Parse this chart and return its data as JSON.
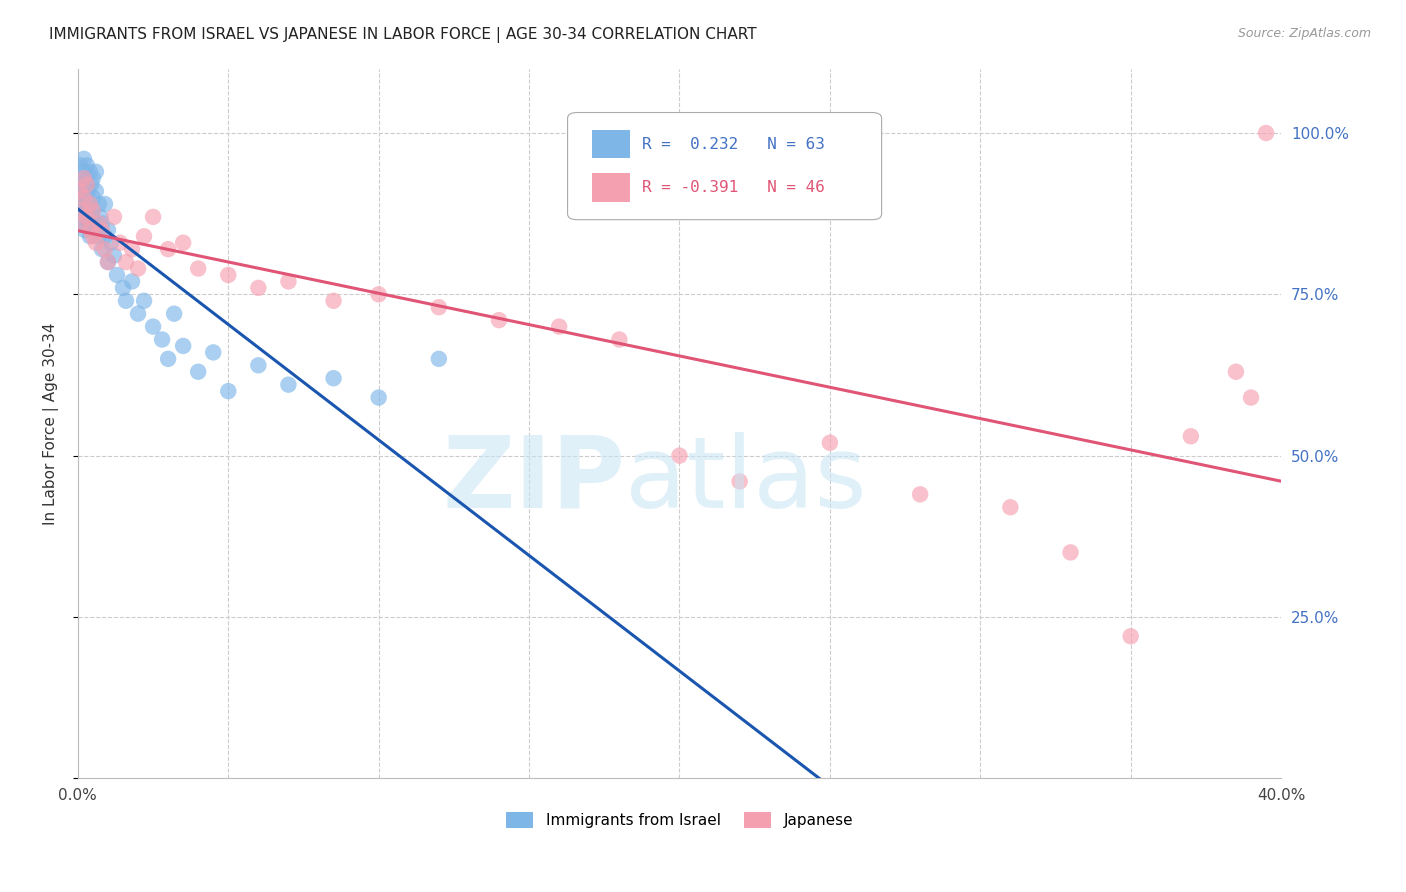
{
  "title": "IMMIGRANTS FROM ISRAEL VS JAPANESE IN LABOR FORCE | AGE 30-34 CORRELATION CHART",
  "source": "Source: ZipAtlas.com",
  "ylabel": "In Labor Force | Age 30-34",
  "xmin": 0.0,
  "xmax": 0.4,
  "ymin": 0.0,
  "ymax": 1.1,
  "yticks": [
    0.0,
    0.25,
    0.5,
    0.75,
    1.0
  ],
  "ytick_labels": [
    "",
    "25.0%",
    "50.0%",
    "75.0%",
    "100.0%"
  ],
  "xticks": [
    0.0,
    0.05,
    0.1,
    0.15,
    0.2,
    0.25,
    0.3,
    0.35,
    0.4
  ],
  "xtick_labels": [
    "0.0%",
    "",
    "",
    "",
    "",
    "",
    "",
    "",
    "40.0%"
  ],
  "israel_R": 0.232,
  "israel_N": 63,
  "japanese_R": -0.391,
  "japanese_N": 46,
  "israel_color": "#7EB6E8",
  "japanese_color": "#F5A0B0",
  "trendline_israel_color": "#1A56B0",
  "trendline_japanese_color": "#E05575",
  "israel_x": [
    0.0005,
    0.0008,
    0.001,
    0.001,
    0.0012,
    0.0013,
    0.0015,
    0.0015,
    0.0018,
    0.002,
    0.002,
    0.002,
    0.0022,
    0.0025,
    0.0025,
    0.003,
    0.003,
    0.003,
    0.003,
    0.0035,
    0.0035,
    0.004,
    0.004,
    0.004,
    0.0045,
    0.0045,
    0.005,
    0.005,
    0.005,
    0.005,
    0.006,
    0.006,
    0.006,
    0.007,
    0.007,
    0.0075,
    0.008,
    0.008,
    0.009,
    0.009,
    0.01,
    0.01,
    0.011,
    0.012,
    0.013,
    0.015,
    0.016,
    0.018,
    0.02,
    0.022,
    0.025,
    0.028,
    0.03,
    0.032,
    0.035,
    0.04,
    0.045,
    0.05,
    0.06,
    0.07,
    0.085,
    0.1,
    0.12
  ],
  "israel_y": [
    0.9,
    0.95,
    0.88,
    0.93,
    0.87,
    0.92,
    0.86,
    0.91,
    0.89,
    0.94,
    0.88,
    0.96,
    0.85,
    0.9,
    0.93,
    0.87,
    0.92,
    0.88,
    0.95,
    0.86,
    0.91,
    0.84,
    0.89,
    0.94,
    0.87,
    0.92,
    0.85,
    0.9,
    0.88,
    0.93,
    0.86,
    0.91,
    0.94,
    0.84,
    0.89,
    0.87,
    0.82,
    0.86,
    0.84,
    0.89,
    0.8,
    0.85,
    0.83,
    0.81,
    0.78,
    0.76,
    0.74,
    0.77,
    0.72,
    0.74,
    0.7,
    0.68,
    0.65,
    0.72,
    0.67,
    0.63,
    0.66,
    0.6,
    0.64,
    0.61,
    0.62,
    0.59,
    0.65
  ],
  "japanese_x": [
    0.0005,
    0.001,
    0.0015,
    0.002,
    0.002,
    0.003,
    0.003,
    0.004,
    0.004,
    0.005,
    0.005,
    0.006,
    0.007,
    0.008,
    0.009,
    0.01,
    0.012,
    0.014,
    0.016,
    0.018,
    0.02,
    0.022,
    0.025,
    0.03,
    0.035,
    0.04,
    0.05,
    0.06,
    0.07,
    0.085,
    0.1,
    0.12,
    0.14,
    0.16,
    0.18,
    0.2,
    0.22,
    0.25,
    0.28,
    0.31,
    0.33,
    0.35,
    0.37,
    0.385,
    0.39,
    0.395
  ],
  "japanese_y": [
    0.91,
    0.88,
    0.86,
    0.9,
    0.93,
    0.87,
    0.92,
    0.85,
    0.89,
    0.84,
    0.88,
    0.83,
    0.86,
    0.85,
    0.82,
    0.8,
    0.87,
    0.83,
    0.8,
    0.82,
    0.79,
    0.84,
    0.87,
    0.82,
    0.83,
    0.79,
    0.78,
    0.76,
    0.77,
    0.74,
    0.75,
    0.73,
    0.71,
    0.7,
    0.68,
    0.5,
    0.46,
    0.52,
    0.44,
    0.42,
    0.35,
    0.22,
    0.53,
    0.63,
    0.59,
    1.0
  ],
  "background_color": "#FFFFFF"
}
